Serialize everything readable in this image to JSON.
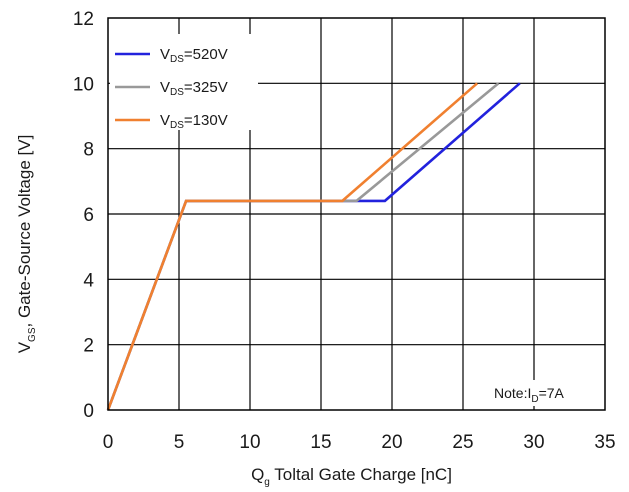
{
  "chart_data": {
    "type": "line",
    "xlabel": {
      "main": "Q",
      "sub": "g",
      "rest": " Toltal Gate Charge [nC]"
    },
    "ylabel": {
      "main": "V",
      "sub": "GS",
      "rest": ", Gate-Source Voltage [V]"
    },
    "xlim": [
      0,
      35
    ],
    "ylim": [
      0,
      12
    ],
    "x_ticks": [
      "0",
      "5",
      "10",
      "15",
      "20",
      "25",
      "30",
      "35"
    ],
    "y_ticks": [
      "0",
      "2",
      "4",
      "6",
      "8",
      "10",
      "12"
    ],
    "grid": true,
    "legend_position": "top-left",
    "note": {
      "pre": "Note:I",
      "sub": "D",
      "post": "=7A"
    },
    "series": [
      {
        "name": "V_DS=520V",
        "label_main": "V",
        "label_sub": "DS",
        "label_rest": "=520V",
        "color": "#2222dd",
        "points": [
          [
            0,
            0
          ],
          [
            5.5,
            6.4
          ],
          [
            18,
            6.4
          ],
          [
            19.5,
            6.4
          ],
          [
            29,
            10
          ]
        ]
      },
      {
        "name": "V_DS=325V",
        "label_main": "V",
        "label_sub": "DS",
        "label_rest": "=325V",
        "color": "#999999",
        "points": [
          [
            0,
            0
          ],
          [
            5.5,
            6.4
          ],
          [
            17.5,
            6.4
          ],
          [
            27.5,
            10
          ]
        ]
      },
      {
        "name": "V_DS=130V",
        "label_main": "V",
        "label_sub": "DS",
        "label_rest": "=130V",
        "color": "#f08030",
        "points": [
          [
            0,
            0
          ],
          [
            5.5,
            6.4
          ],
          [
            16.5,
            6.4
          ],
          [
            26,
            10
          ]
        ]
      }
    ]
  }
}
